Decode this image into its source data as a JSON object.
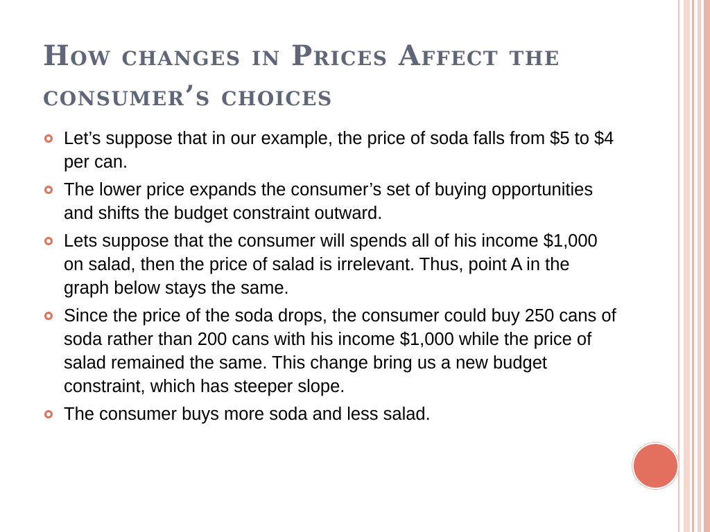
{
  "slide": {
    "title_line1": "How changes in Prices Affect the",
    "title_line2": "consumer’s choices",
    "bullets": [
      "Let’s suppose that in our example, the price of soda falls from $5 to $4 per can.",
      "The lower price expands the consumer’s set of buying opportunities and shifts the budget constraint outward.",
      "Lets suppose that the consumer will spends all of his income $1,000 on salad, then the price of salad is irrelevant. Thus, point A in the graph below stays the same.",
      "Since the price of the soda drops, the consumer could buy 250 cans of soda rather than 200 cans with his income $1,000 while the price of salad remained the same. This change bring us a new budget constraint, which has steeper slope.",
      "The consumer buys more soda and less salad."
    ]
  },
  "colors": {
    "title": "#5e6678",
    "accent": "#e3705e",
    "stripe": "#e8b6a8"
  },
  "icons": {
    "bullet": "hollow-circle-icon",
    "accent": "filled-circle-icon"
  }
}
